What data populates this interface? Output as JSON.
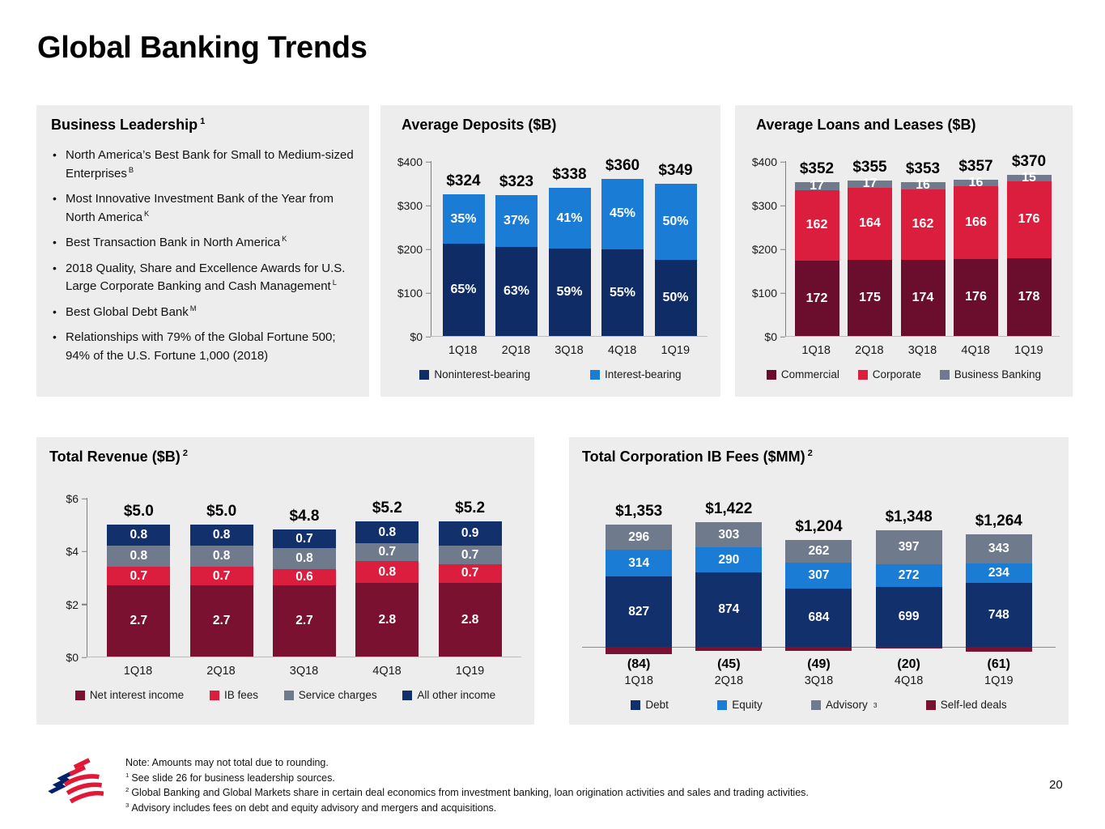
{
  "page": {
    "title": "Global Banking Trends",
    "page_number": "20"
  },
  "business_leadership": {
    "title": "Business Leadership",
    "title_sup": "1",
    "bullets": [
      {
        "text": "North America’s Best Bank for Small to Medium-sized Enterprises",
        "sup": "B"
      },
      {
        "text": "Most Innovative Investment Bank of the Year from North America",
        "sup": "K"
      },
      {
        "text": "Best Transaction Bank in North America",
        "sup": "K"
      },
      {
        "text": "2018 Quality, Share and Excellence Awards for U.S. Large Corporate Banking and Cash Management",
        "sup": "L"
      },
      {
        "text": "Best Global Debt Bank",
        "sup": "M"
      },
      {
        "text": "Relationships with 79% of the Global Fortune 500; 94% of the U.S. Fortune 1,000 (2018)",
        "sup": ""
      }
    ]
  },
  "chart_data": [
    {
      "id": "average_deposits",
      "type": "bar",
      "stacked": true,
      "title": "Average Deposits ($B)",
      "title_sup": "",
      "categories": [
        "1Q18",
        "2Q18",
        "3Q18",
        "4Q18",
        "1Q19"
      ],
      "series": [
        {
          "name": "Noninterest-bearing",
          "color": "#102c67",
          "values": [
            210.6,
            203.5,
            199.4,
            198.0,
            174.5
          ],
          "labels": [
            "65%",
            "63%",
            "59%",
            "55%",
            "50%"
          ]
        },
        {
          "name": "Interest-bearing",
          "color": "#1b7cd6",
          "values": [
            113.4,
            119.5,
            138.6,
            162.0,
            174.5
          ],
          "labels": [
            "35%",
            "37%",
            "41%",
            "45%",
            "50%"
          ]
        }
      ],
      "totals": [
        "$324",
        "$323",
        "$338",
        "$360",
        "$349"
      ],
      "ylim": [
        0,
        400
      ],
      "yticks": [
        "$0",
        "$100",
        "$200",
        "$300",
        "$400"
      ],
      "legend_position": "bottom"
    },
    {
      "id": "average_loans_and_leases",
      "type": "bar",
      "stacked": true,
      "title": "Average Loans and Leases ($B)",
      "title_sup": "",
      "categories": [
        "1Q18",
        "2Q18",
        "3Q18",
        "4Q18",
        "1Q19"
      ],
      "series": [
        {
          "name": "Commercial",
          "color": "#6b0e2d",
          "values": [
            172,
            175,
            174,
            176,
            178
          ],
          "labels": [
            "172",
            "175",
            "174",
            "176",
            "178"
          ]
        },
        {
          "name": "Corporate",
          "color": "#dc1e3e",
          "values": [
            162,
            164,
            162,
            166,
            176
          ],
          "labels": [
            "162",
            "164",
            "162",
            "166",
            "176"
          ]
        },
        {
          "name": "Business Banking",
          "color": "#6f7a8c",
          "values": [
            17,
            17,
            16,
            16,
            15
          ],
          "labels": [
            "17",
            "17",
            "16",
            "16",
            "15"
          ]
        }
      ],
      "totals": [
        "$352",
        "$355",
        "$353",
        "$357",
        "$370"
      ],
      "ylim": [
        0,
        400
      ],
      "yticks": [
        "$0",
        "$100",
        "$200",
        "$300",
        "$400"
      ],
      "legend_position": "bottom"
    },
    {
      "id": "total_revenue",
      "type": "bar",
      "stacked": true,
      "title": "Total Revenue ($B)",
      "title_sup": "2",
      "categories": [
        "1Q18",
        "2Q18",
        "3Q18",
        "4Q18",
        "1Q19"
      ],
      "series": [
        {
          "name": "Net interest income",
          "color": "#7a1130",
          "values": [
            2.7,
            2.7,
            2.7,
            2.8,
            2.8
          ],
          "labels": [
            "2.7",
            "2.7",
            "2.7",
            "2.8",
            "2.8"
          ]
        },
        {
          "name": "IB fees",
          "color": "#dc1e3e",
          "values": [
            0.7,
            0.7,
            0.6,
            0.8,
            0.7
          ],
          "labels": [
            "0.7",
            "0.7",
            "0.6",
            "0.8",
            "0.7"
          ]
        },
        {
          "name": "Service charges",
          "color": "#6f7a8c",
          "values": [
            0.8,
            0.8,
            0.8,
            0.7,
            0.7
          ],
          "labels": [
            "0.8",
            "0.8",
            "0.8",
            "0.7",
            "0.7"
          ]
        },
        {
          "name": "All other income",
          "color": "#12306b",
          "values": [
            0.8,
            0.8,
            0.7,
            0.8,
            0.9
          ],
          "labels": [
            "0.8",
            "0.8",
            "0.7",
            "0.8",
            "0.9"
          ]
        }
      ],
      "totals": [
        "$5.0",
        "$5.0",
        "$4.8",
        "$5.2",
        "$5.2"
      ],
      "ylim": [
        0,
        6
      ],
      "yticks": [
        "$0",
        "$2",
        "$4",
        "$6"
      ],
      "legend_position": "bottom"
    },
    {
      "id": "total_corporation_ib_fees",
      "type": "bar",
      "stacked": true,
      "title": "Total Corporation IB Fees ($MM)",
      "title_sup": "2",
      "categories": [
        "1Q18",
        "2Q18",
        "3Q18",
        "4Q18",
        "1Q19"
      ],
      "series": [
        {
          "name": "Debt",
          "color": "#12306b",
          "values": [
            827,
            874,
            684,
            699,
            748
          ],
          "labels": [
            "827",
            "874",
            "684",
            "699",
            "748"
          ]
        },
        {
          "name": "Equity",
          "color": "#1b7cd6",
          "values": [
            314,
            290,
            307,
            272,
            234
          ],
          "labels": [
            "314",
            "290",
            "307",
            "272",
            "234"
          ]
        },
        {
          "name": "Advisory",
          "sup": "3",
          "color": "#6f7a8c",
          "values": [
            296,
            303,
            262,
            397,
            343
          ],
          "labels": [
            "296",
            "303",
            "262",
            "397",
            "343"
          ]
        },
        {
          "name": "Self-led deals",
          "color": "#7a1130",
          "values": [
            -84,
            -45,
            -49,
            -20,
            -61
          ],
          "neg_labels": [
            "(84)",
            "(45)",
            "(49)",
            "(20)",
            "(61)"
          ]
        }
      ],
      "totals": [
        "$1,353",
        "$1,422",
        "$1,204",
        "$1,348",
        "$1,264"
      ],
      "ylim": [
        0,
        1900
      ],
      "yticks": null,
      "legend_position": "bottom"
    }
  ],
  "footnotes": {
    "note": "Note: Amounts may not total due to rounding.",
    "items": [
      {
        "sup": "1",
        "text": "See slide 26 for business leadership sources."
      },
      {
        "sup": "2",
        "text": "Global Banking and Global Markets share in certain deal economics from investment banking, loan origination activities and sales and trading activities."
      },
      {
        "sup": "3",
        "text": "Advisory includes fees on debt and equity advisory and mergers and acquisitions."
      }
    ]
  },
  "brand": {
    "logo_blue": "#012169",
    "logo_red": "#e31837"
  }
}
